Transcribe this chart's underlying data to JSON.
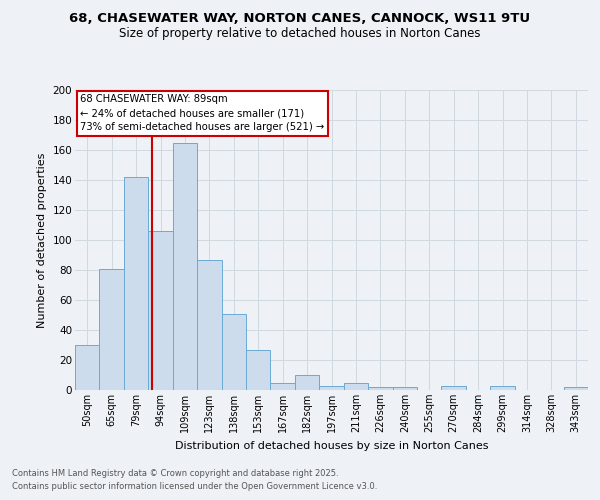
{
  "title_line1": "68, CHASEWATER WAY, NORTON CANES, CANNOCK, WS11 9TU",
  "title_line2": "Size of property relative to detached houses in Norton Canes",
  "xlabel": "Distribution of detached houses by size in Norton Canes",
  "ylabel": "Number of detached properties",
  "categories": [
    "50sqm",
    "65sqm",
    "79sqm",
    "94sqm",
    "109sqm",
    "123sqm",
    "138sqm",
    "153sqm",
    "167sqm",
    "182sqm",
    "197sqm",
    "211sqm",
    "226sqm",
    "240sqm",
    "255sqm",
    "270sqm",
    "284sqm",
    "299sqm",
    "314sqm",
    "328sqm",
    "343sqm"
  ],
  "values": [
    30,
    81,
    142,
    106,
    165,
    87,
    51,
    27,
    5,
    10,
    3,
    5,
    2,
    2,
    0,
    3,
    0,
    3,
    0,
    0,
    2
  ],
  "bar_color": "#ccdcec",
  "bar_edge_color": "#6aaad4",
  "grid_color": "#d0d8e0",
  "vline_color": "#cc0000",
  "annotation_box_color": "#cc0000",
  "annotation_text_line1": "68 CHASEWATER WAY: 89sqm",
  "annotation_text_line2": "← 24% of detached houses are smaller (171)",
  "annotation_text_line3": "73% of semi-detached houses are larger (521) →",
  "footer_line1": "Contains HM Land Registry data © Crown copyright and database right 2025.",
  "footer_line2": "Contains public sector information licensed under the Open Government Licence v3.0.",
  "ylim": [
    0,
    200
  ],
  "yticks": [
    0,
    20,
    40,
    60,
    80,
    100,
    120,
    140,
    160,
    180,
    200
  ],
  "background_color": "#eef2f6",
  "plot_bg_color": "#eef2f6"
}
